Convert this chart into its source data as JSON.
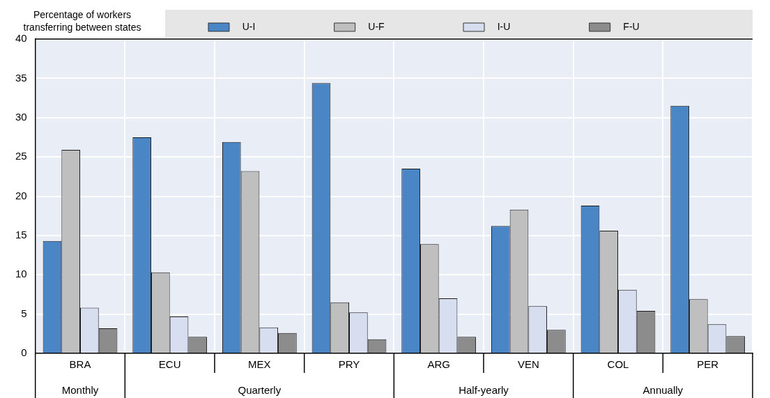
{
  "chart_data": {
    "type": "bar",
    "ylabel": "Percentage of workers transferring between states",
    "categories": [
      "BRA",
      "ECU",
      "MEX",
      "PRY",
      "ARG",
      "VEN",
      "COL",
      "PER"
    ],
    "series": [
      {
        "name": "U-I",
        "color": "#4a86c6",
        "values": [
          14.3,
          27.5,
          26.9,
          34.4,
          23.5,
          16.2,
          18.8,
          31.5
        ]
      },
      {
        "name": "U-F",
        "color": "#bfbfbf",
        "values": [
          25.9,
          10.3,
          23.2,
          6.5,
          13.9,
          18.3,
          15.6,
          6.9
        ]
      },
      {
        "name": "I-U",
        "color": "#d6deef",
        "values": [
          5.8,
          4.7,
          3.3,
          5.2,
          7.0,
          6.0,
          8.1,
          3.7
        ]
      },
      {
        "name": "F-U",
        "color": "#8c8c8c",
        "values": [
          3.2,
          2.1,
          2.6,
          1.8,
          2.1,
          3.0,
          5.4,
          2.2
        ]
      }
    ],
    "annotations": [
      "Monthly",
      "Quarterly",
      "Half-yearly",
      "Annually"
    ],
    "ylim": [
      0,
      40
    ],
    "yticks": [
      0,
      5,
      10,
      15,
      20,
      25,
      30,
      35,
      40
    ],
    "grid": true,
    "legend": "top"
  }
}
